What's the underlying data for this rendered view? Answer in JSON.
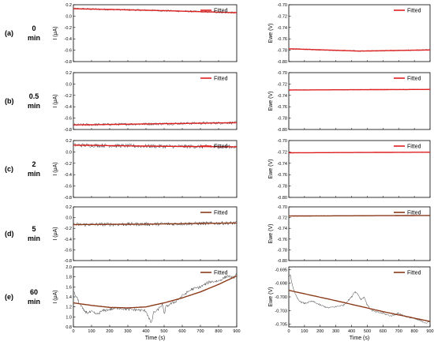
{
  "rows": [
    {
      "letter": "(a)",
      "time": "0",
      "unit": "min"
    },
    {
      "letter": "(b)",
      "time": "0.5",
      "unit": "min"
    },
    {
      "letter": "(c)",
      "time": "2",
      "unit": "min"
    },
    {
      "letter": "(d)",
      "time": "5",
      "unit": "min"
    },
    {
      "letter": "(e)",
      "time": "60",
      "unit": "min"
    }
  ],
  "x_label": "Time (s)",
  "colors": {
    "data": "#3a3a3a",
    "fit_red": "#e02020",
    "fit_brown": "#8b3a1a"
  },
  "chart_data": [
    {
      "id": "a-left",
      "type": "line",
      "ylabel": "I (μA)",
      "xlim": [
        0,
        900
      ],
      "ylim": [
        -0.8,
        0.2
      ],
      "yticks": [
        "0.2",
        "0.0",
        "-0.2",
        "-0.4",
        "-0.6",
        "-0.8"
      ],
      "xticks": [],
      "legend": "Fitted",
      "fit_color": "#e02020",
      "fit": {
        "x": [
          0,
          450,
          900
        ],
        "y": [
          0.13,
          0.1,
          0.06
        ]
      },
      "noise": {
        "amp": 0.018
      }
    },
    {
      "id": "a-right",
      "type": "line",
      "ylabel": "Ewe (V)",
      "xlim": [
        0,
        900
      ],
      "ylim": [
        -0.8,
        -0.7
      ],
      "yticks": [
        "-0.70",
        "-0.72",
        "-0.74",
        "-0.76",
        "-0.78",
        "-0.80"
      ],
      "xticks": [],
      "legend": "Fitted",
      "fit_color": "#e02020",
      "fit": {
        "x": [
          0,
          450,
          900
        ],
        "y": [
          -0.7775,
          -0.7815,
          -0.7795
        ]
      },
      "noise": {
        "amp": 0.0012
      }
    },
    {
      "id": "b-left",
      "type": "line",
      "ylabel": "I (μA)",
      "xlim": [
        0,
        900
      ],
      "ylim": [
        -0.8,
        0.2
      ],
      "yticks": [
        "0.2",
        "0.0",
        "-0.2",
        "-0.4",
        "-0.6",
        "-0.8"
      ],
      "xticks": [],
      "legend": "Fitted",
      "fit_color": "#e02020",
      "fit": {
        "x": [
          0,
          450,
          900
        ],
        "y": [
          -0.72,
          -0.7,
          -0.68
        ]
      },
      "noise": {
        "amp": 0.025
      }
    },
    {
      "id": "b-right",
      "type": "line",
      "ylabel": "Ewe (V)",
      "xlim": [
        0,
        900
      ],
      "ylim": [
        -0.8,
        -0.7
      ],
      "yticks": [
        "-0.70",
        "-0.72",
        "-0.74",
        "-0.76",
        "-0.78",
        "-0.80"
      ],
      "xticks": [],
      "legend": "Fitted",
      "fit_color": "#e02020",
      "fit": {
        "x": [
          0,
          450,
          900
        ],
        "y": [
          -0.7305,
          -0.73,
          -0.7295
        ]
      },
      "noise": {
        "amp": 0.0008
      }
    },
    {
      "id": "c-left",
      "type": "line",
      "ylabel": "I (μA)",
      "xlim": [
        0,
        900
      ],
      "ylim": [
        -0.8,
        0.2
      ],
      "yticks": [
        "0.2",
        "0.0",
        "-0.2",
        "-0.4",
        "-0.6",
        "-0.8"
      ],
      "xticks": [],
      "legend": "Fitted",
      "fit_color": "#e02020",
      "fit": {
        "x": [
          0,
          450,
          900
        ],
        "y": [
          0.12,
          0.1,
          0.09
        ]
      },
      "noise": {
        "amp": 0.035
      }
    },
    {
      "id": "c-right",
      "type": "line",
      "ylabel": "Ewe (V)",
      "xlim": [
        0,
        900
      ],
      "ylim": [
        -0.8,
        -0.7
      ],
      "yticks": [
        "-0.70",
        "-0.72",
        "-0.74",
        "-0.76",
        "-0.78",
        "-0.80"
      ],
      "xticks": [],
      "legend": "Fitted",
      "fit_color": "#e02020",
      "fit": {
        "x": [
          0,
          450,
          900
        ],
        "y": [
          -0.7215,
          -0.721,
          -0.7205
        ]
      },
      "noise": {
        "amp": 0.0007
      }
    },
    {
      "id": "d-left",
      "type": "line",
      "ylabel": "I (μA)",
      "xlim": [
        0,
        900
      ],
      "ylim": [
        -0.8,
        0.2
      ],
      "yticks": [
        "0.2",
        "0.0",
        "-0.2",
        "-0.4",
        "-0.6",
        "-0.8"
      ],
      "xticks": [],
      "legend": "Fitted",
      "fit_color": "#8b3a1a",
      "fit": {
        "x": [
          0,
          450,
          900
        ],
        "y": [
          -0.13,
          -0.12,
          -0.1
        ]
      },
      "noise": {
        "amp": 0.035
      }
    },
    {
      "id": "d-right",
      "type": "line",
      "ylabel": "Ewe (V)",
      "xlim": [
        0,
        900
      ],
      "ylim": [
        -0.8,
        -0.7
      ],
      "yticks": [
        "-0.70",
        "-0.72",
        "-0.74",
        "-0.76",
        "-0.78",
        "-0.80"
      ],
      "xticks": [],
      "legend": "Fitted",
      "fit_color": "#8b3a1a",
      "fit": {
        "x": [
          0,
          450,
          900
        ],
        "y": [
          -0.717,
          -0.7165,
          -0.716
        ]
      },
      "noise": {
        "amp": 0.0007
      }
    },
    {
      "id": "e-left",
      "type": "line",
      "ylabel": "I (μA)",
      "xlim": [
        0,
        900
      ],
      "ylim": [
        0.8,
        2.0
      ],
      "yticks": [
        "2.0",
        "1.8",
        "1.6",
        "1.4",
        "1.2",
        "1.0",
        "0.8"
      ],
      "xticks": [
        "0",
        "100",
        "200",
        "300",
        "400",
        "500",
        "600",
        "700",
        "800",
        "900"
      ],
      "xlabel": "Time (s)",
      "legend": "Fitted",
      "fit_color": "#8b3a1a",
      "fit": {
        "x": [
          0,
          100,
          200,
          300,
          400,
          500,
          600,
          700,
          800,
          900
        ],
        "y": [
          1.28,
          1.23,
          1.19,
          1.18,
          1.2,
          1.28,
          1.38,
          1.5,
          1.65,
          1.82
        ]
      },
      "data": {
        "x": [
          0,
          20,
          40,
          60,
          80,
          100,
          130,
          160,
          200,
          250,
          300,
          350,
          400,
          420,
          430,
          440,
          460,
          490,
          500,
          510,
          530,
          560,
          600,
          650,
          700,
          750,
          800,
          850,
          880,
          900
        ],
        "y": [
          1.5,
          1.38,
          1.22,
          1.12,
          1.08,
          1.1,
          1.05,
          1.12,
          1.15,
          1.18,
          1.15,
          1.14,
          1.12,
          0.95,
          0.85,
          1.08,
          1.12,
          1.25,
          1.05,
          1.2,
          1.25,
          1.3,
          1.42,
          1.55,
          1.6,
          1.7,
          1.72,
          1.82,
          1.78,
          1.85
        ]
      },
      "noise": {
        "amp": 0.03
      }
    },
    {
      "id": "e-right",
      "type": "line",
      "ylabel": "Ewe (V)",
      "xlim": [
        0,
        900
      ],
      "ylim": [
        -0.7055,
        -0.6945
      ],
      "yticks": [
        "-0.695",
        "-0.698",
        "-0.700",
        "-0.703",
        "-0.705"
      ],
      "ytick_values": [
        -0.695,
        -0.6975,
        -0.7,
        -0.7025,
        -0.705
      ],
      "xticks": [
        "0",
        "100",
        "200",
        "300",
        "400",
        "500",
        "600",
        "700",
        "800",
        "900"
      ],
      "xlabel": "Time (s)",
      "legend": "Fitted",
      "fit_color": "#8b3a1a",
      "fit": {
        "x": [
          0,
          300,
          600,
          900
        ],
        "y": [
          -0.6988,
          -0.7007,
          -0.7027,
          -0.7045
        ]
      },
      "data": {
        "x": [
          0,
          10,
          20,
          40,
          60,
          80,
          100,
          150,
          200,
          250,
          300,
          350,
          400,
          420,
          440,
          460,
          480,
          500,
          530,
          560,
          600,
          650,
          700,
          750,
          800,
          850,
          880,
          900
        ],
        "y": [
          -0.6965,
          -0.696,
          -0.6975,
          -0.6995,
          -0.7005,
          -0.701,
          -0.7012,
          -0.7008,
          -0.7015,
          -0.702,
          -0.7018,
          -0.7015,
          -0.7,
          -0.699,
          -0.6995,
          -0.7005,
          -0.7,
          -0.7015,
          -0.7025,
          -0.7028,
          -0.703,
          -0.7035,
          -0.703,
          -0.7036,
          -0.704,
          -0.7045,
          -0.7048,
          -0.7045
        ]
      },
      "noise": {
        "amp": 0.00015
      }
    }
  ]
}
